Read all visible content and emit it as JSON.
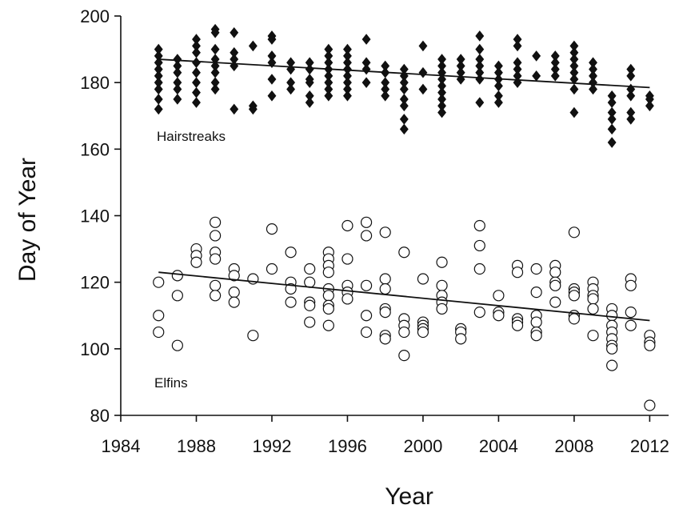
{
  "chart_data": {
    "type": "scatter",
    "xlabel": "Year",
    "ylabel": "Day of Year",
    "xlim": [
      1984,
      2013
    ],
    "ylim": [
      80,
      200
    ],
    "xticks": [
      1984,
      1988,
      1992,
      1996,
      2000,
      2004,
      2008,
      2012
    ],
    "yticks": [
      80,
      100,
      120,
      140,
      160,
      180,
      200
    ],
    "grid": false,
    "series": [
      {
        "name": "Hairstreaks",
        "marker": "filled-diamond",
        "color": "#111111",
        "points": [
          [
            1986,
            190
          ],
          [
            1986,
            188
          ],
          [
            1986,
            186
          ],
          [
            1986,
            184
          ],
          [
            1986,
            182
          ],
          [
            1986,
            180
          ],
          [
            1986,
            178
          ],
          [
            1986,
            175
          ],
          [
            1986,
            172
          ],
          [
            1987,
            187
          ],
          [
            1987,
            185
          ],
          [
            1987,
            183
          ],
          [
            1987,
            180
          ],
          [
            1987,
            178
          ],
          [
            1987,
            175
          ],
          [
            1988,
            193
          ],
          [
            1988,
            191
          ],
          [
            1988,
            189
          ],
          [
            1988,
            186
          ],
          [
            1988,
            183
          ],
          [
            1988,
            180
          ],
          [
            1988,
            177
          ],
          [
            1988,
            174
          ],
          [
            1989,
            196
          ],
          [
            1989,
            195
          ],
          [
            1989,
            190
          ],
          [
            1989,
            187
          ],
          [
            1989,
            185
          ],
          [
            1989,
            183
          ],
          [
            1989,
            180
          ],
          [
            1989,
            178
          ],
          [
            1990,
            195
          ],
          [
            1990,
            189
          ],
          [
            1990,
            187
          ],
          [
            1990,
            185
          ],
          [
            1990,
            172
          ],
          [
            1991,
            191
          ],
          [
            1991,
            173
          ],
          [
            1991,
            172
          ],
          [
            1992,
            194
          ],
          [
            1992,
            193
          ],
          [
            1992,
            188
          ],
          [
            1992,
            186
          ],
          [
            1992,
            181
          ],
          [
            1992,
            176
          ],
          [
            1993,
            186
          ],
          [
            1993,
            184
          ],
          [
            1993,
            180
          ],
          [
            1993,
            178
          ],
          [
            1994,
            186
          ],
          [
            1994,
            184
          ],
          [
            1994,
            181
          ],
          [
            1994,
            180
          ],
          [
            1994,
            176
          ],
          [
            1994,
            174
          ],
          [
            1995,
            190
          ],
          [
            1995,
            188
          ],
          [
            1995,
            186
          ],
          [
            1995,
            184
          ],
          [
            1995,
            182
          ],
          [
            1995,
            180
          ],
          [
            1995,
            178
          ],
          [
            1995,
            176
          ],
          [
            1996,
            190
          ],
          [
            1996,
            188
          ],
          [
            1996,
            186
          ],
          [
            1996,
            184
          ],
          [
            1996,
            182
          ],
          [
            1996,
            180
          ],
          [
            1996,
            178
          ],
          [
            1996,
            176
          ],
          [
            1997,
            193
          ],
          [
            1997,
            186
          ],
          [
            1997,
            184
          ],
          [
            1997,
            180
          ],
          [
            1998,
            185
          ],
          [
            1998,
            183
          ],
          [
            1998,
            180
          ],
          [
            1998,
            178
          ],
          [
            1998,
            176
          ],
          [
            1999,
            184
          ],
          [
            1999,
            182
          ],
          [
            1999,
            180
          ],
          [
            1999,
            178
          ],
          [
            1999,
            175
          ],
          [
            1999,
            173
          ],
          [
            1999,
            169
          ],
          [
            1999,
            166
          ],
          [
            2000,
            191
          ],
          [
            2000,
            183
          ],
          [
            2000,
            178
          ],
          [
            2001,
            187
          ],
          [
            2001,
            185
          ],
          [
            2001,
            183
          ],
          [
            2001,
            181
          ],
          [
            2001,
            179
          ],
          [
            2001,
            177
          ],
          [
            2001,
            175
          ],
          [
            2001,
            173
          ],
          [
            2001,
            171
          ],
          [
            2002,
            187
          ],
          [
            2002,
            185
          ],
          [
            2002,
            183
          ],
          [
            2002,
            181
          ],
          [
            2003,
            194
          ],
          [
            2003,
            190
          ],
          [
            2003,
            187
          ],
          [
            2003,
            185
          ],
          [
            2003,
            183
          ],
          [
            2003,
            181
          ],
          [
            2003,
            174
          ],
          [
            2004,
            185
          ],
          [
            2004,
            183
          ],
          [
            2004,
            181
          ],
          [
            2004,
            179
          ],
          [
            2004,
            176
          ],
          [
            2004,
            174
          ],
          [
            2005,
            193
          ],
          [
            2005,
            191
          ],
          [
            2005,
            186
          ],
          [
            2005,
            184
          ],
          [
            2005,
            182
          ],
          [
            2005,
            180
          ],
          [
            2006,
            188
          ],
          [
            2006,
            182
          ],
          [
            2007,
            188
          ],
          [
            2007,
            186
          ],
          [
            2007,
            184
          ],
          [
            2007,
            182
          ],
          [
            2008,
            191
          ],
          [
            2008,
            189
          ],
          [
            2008,
            187
          ],
          [
            2008,
            185
          ],
          [
            2008,
            183
          ],
          [
            2008,
            181
          ],
          [
            2008,
            178
          ],
          [
            2008,
            171
          ],
          [
            2009,
            186
          ],
          [
            2009,
            184
          ],
          [
            2009,
            182
          ],
          [
            2009,
            180
          ],
          [
            2009,
            178
          ],
          [
            2010,
            176
          ],
          [
            2010,
            174
          ],
          [
            2010,
            171
          ],
          [
            2010,
            169
          ],
          [
            2010,
            166
          ],
          [
            2010,
            162
          ],
          [
            2011,
            184
          ],
          [
            2011,
            182
          ],
          [
            2011,
            178
          ],
          [
            2011,
            176
          ],
          [
            2011,
            171
          ],
          [
            2011,
            169
          ],
          [
            2012,
            176
          ],
          [
            2012,
            175
          ],
          [
            2012,
            173
          ]
        ],
        "trend": [
          [
            1986,
            187
          ],
          [
            2012,
            178.5
          ]
        ]
      },
      {
        "name": "Elfins",
        "marker": "open-circle",
        "color": "#111111",
        "points": [
          [
            1986,
            120
          ],
          [
            1986,
            110
          ],
          [
            1986,
            105
          ],
          [
            1987,
            122
          ],
          [
            1987,
            116
          ],
          [
            1987,
            101
          ],
          [
            1988,
            130
          ],
          [
            1988,
            128
          ],
          [
            1988,
            126
          ],
          [
            1989,
            138
          ],
          [
            1989,
            134
          ],
          [
            1989,
            129
          ],
          [
            1989,
            127
          ],
          [
            1989,
            119
          ],
          [
            1989,
            116
          ],
          [
            1990,
            124
          ],
          [
            1990,
            122
          ],
          [
            1990,
            117
          ],
          [
            1990,
            114
          ],
          [
            1991,
            121
          ],
          [
            1991,
            104
          ],
          [
            1992,
            136
          ],
          [
            1992,
            124
          ],
          [
            1993,
            129
          ],
          [
            1993,
            120
          ],
          [
            1993,
            118
          ],
          [
            1993,
            114
          ],
          [
            1994,
            124
          ],
          [
            1994,
            120
          ],
          [
            1994,
            114
          ],
          [
            1994,
            113
          ],
          [
            1994,
            108
          ],
          [
            1995,
            129
          ],
          [
            1995,
            127
          ],
          [
            1995,
            125
          ],
          [
            1995,
            123
          ],
          [
            1995,
            118
          ],
          [
            1995,
            116
          ],
          [
            1995,
            113
          ],
          [
            1995,
            112
          ],
          [
            1995,
            107
          ],
          [
            1996,
            137
          ],
          [
            1996,
            127
          ],
          [
            1996,
            119
          ],
          [
            1996,
            117
          ],
          [
            1996,
            115
          ],
          [
            1997,
            138
          ],
          [
            1997,
            134
          ],
          [
            1997,
            119
          ],
          [
            1997,
            110
          ],
          [
            1997,
            105
          ],
          [
            1998,
            135
          ],
          [
            1998,
            121
          ],
          [
            1998,
            118
          ],
          [
            1998,
            112
          ],
          [
            1998,
            111
          ],
          [
            1998,
            104
          ],
          [
            1998,
            103
          ],
          [
            1999,
            129
          ],
          [
            1999,
            109
          ],
          [
            1999,
            107
          ],
          [
            1999,
            105
          ],
          [
            1999,
            98
          ],
          [
            2000,
            121
          ],
          [
            2000,
            108
          ],
          [
            2000,
            107
          ],
          [
            2000,
            106
          ],
          [
            2000,
            105
          ],
          [
            2001,
            126
          ],
          [
            2001,
            119
          ],
          [
            2001,
            116
          ],
          [
            2001,
            114
          ],
          [
            2001,
            112
          ],
          [
            2002,
            106
          ],
          [
            2002,
            105
          ],
          [
            2002,
            103
          ],
          [
            2003,
            137
          ],
          [
            2003,
            131
          ],
          [
            2003,
            124
          ],
          [
            2003,
            111
          ],
          [
            2004,
            116
          ],
          [
            2004,
            111
          ],
          [
            2004,
            110
          ],
          [
            2005,
            125
          ],
          [
            2005,
            123
          ],
          [
            2005,
            109
          ],
          [
            2005,
            108
          ],
          [
            2005,
            107
          ],
          [
            2006,
            124
          ],
          [
            2006,
            117
          ],
          [
            2006,
            110
          ],
          [
            2006,
            108
          ],
          [
            2006,
            105
          ],
          [
            2006,
            104
          ],
          [
            2007,
            125
          ],
          [
            2007,
            123
          ],
          [
            2007,
            120
          ],
          [
            2007,
            119
          ],
          [
            2007,
            114
          ],
          [
            2008,
            135
          ],
          [
            2008,
            118
          ],
          [
            2008,
            117
          ],
          [
            2008,
            116
          ],
          [
            2008,
            110
          ],
          [
            2008,
            109
          ],
          [
            2009,
            120
          ],
          [
            2009,
            118
          ],
          [
            2009,
            116
          ],
          [
            2009,
            115
          ],
          [
            2009,
            112
          ],
          [
            2009,
            104
          ],
          [
            2010,
            112
          ],
          [
            2010,
            110
          ],
          [
            2010,
            107
          ],
          [
            2010,
            105
          ],
          [
            2010,
            103
          ],
          [
            2010,
            101
          ],
          [
            2010,
            100
          ],
          [
            2010,
            95
          ],
          [
            2011,
            121
          ],
          [
            2011,
            119
          ],
          [
            2011,
            111
          ],
          [
            2011,
            107
          ],
          [
            2012,
            104
          ],
          [
            2012,
            102
          ],
          [
            2012,
            101
          ],
          [
            2012,
            83
          ]
        ],
        "trend": [
          [
            1986,
            123
          ],
          [
            2012,
            108.5
          ]
        ]
      }
    ]
  }
}
